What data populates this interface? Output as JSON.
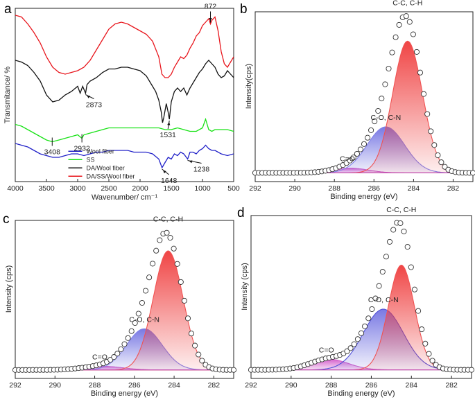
{
  "chart_data": [
    {
      "panel": "a",
      "type": "line",
      "title": "",
      "xlabel": "Wavenumber/ cm⁻¹",
      "ylabel": "Transmitance/ %",
      "xlim": [
        4000,
        500
      ],
      "ylim": [
        0,
        100
      ],
      "xticks": [
        4000,
        3500,
        3000,
        2500,
        2000,
        1500,
        1000,
        500
      ],
      "series": [
        {
          "name": "DA/SS/Wool fiber",
          "color": "#e8141b",
          "x": [
            4000,
            3900,
            3800,
            3700,
            3600,
            3500,
            3400,
            3300,
            3200,
            3100,
            3000,
            2900,
            2800,
            2700,
            2600,
            2500,
            2400,
            2300,
            2200,
            2100,
            2000,
            1900,
            1800,
            1700,
            1650,
            1600,
            1550,
            1500,
            1450,
            1400,
            1350,
            1300,
            1250,
            1200,
            1150,
            1100,
            1050,
            1000,
            950,
            900,
            872,
            850,
            800,
            750,
            700,
            650,
            600,
            550,
            500
          ],
          "y": [
            96,
            95,
            91,
            86,
            80,
            72,
            66,
            63,
            62,
            63,
            64,
            66,
            70,
            76,
            82,
            88,
            91,
            92,
            91,
            89,
            87,
            85,
            81,
            72,
            62,
            60,
            60,
            62,
            66,
            69,
            72,
            71,
            73,
            77,
            80,
            84,
            86,
            90,
            92,
            94,
            91,
            93,
            95,
            87,
            75,
            68,
            66,
            69,
            72
          ]
        },
        {
          "name": "DA/Wool fiber",
          "color": "#111111",
          "x": [
            4000,
            3900,
            3800,
            3700,
            3600,
            3500,
            3400,
            3300,
            3200,
            3100,
            3000,
            2960,
            2920,
            2873,
            2850,
            2800,
            2700,
            2600,
            2500,
            2400,
            2300,
            2200,
            2100,
            2000,
            1900,
            1800,
            1750,
            1700,
            1660,
            1640,
            1620,
            1600,
            1580,
            1550,
            1531,
            1500,
            1450,
            1400,
            1350,
            1300,
            1250,
            1200,
            1150,
            1100,
            1050,
            1000,
            950,
            900,
            850,
            800,
            750,
            700,
            650,
            600,
            550,
            500
          ],
          "y": [
            70,
            69,
            67,
            63,
            58,
            50,
            46,
            47,
            50,
            52,
            55,
            51,
            55,
            51,
            56,
            58,
            60,
            63,
            65,
            65,
            66,
            66,
            65,
            64,
            61,
            55,
            52,
            47,
            40,
            34,
            37,
            41,
            45,
            40,
            36,
            46,
            52,
            54,
            52,
            54,
            50,
            54,
            57,
            60,
            63,
            65,
            68,
            70,
            68,
            66,
            62,
            60,
            61,
            64,
            62,
            60
          ]
        },
        {
          "name": "SS",
          "color": "#17e215",
          "x": [
            4000,
            3900,
            3800,
            3700,
            3600,
            3500,
            3408,
            3300,
            3200,
            3100,
            3000,
            2932,
            2900,
            2800,
            2700,
            2600,
            2500,
            2400,
            2300,
            2200,
            2100,
            2000,
            1900,
            1800,
            1700,
            1600,
            1500,
            1400,
            1300,
            1200,
            1100,
            1000,
            950,
            900,
            850,
            800,
            700,
            600,
            500
          ],
          "y": [
            33,
            32,
            30,
            28,
            26,
            24,
            23,
            24,
            25,
            26,
            27,
            25,
            27,
            28,
            29,
            30,
            31,
            31,
            31,
            31,
            31,
            31,
            31,
            31,
            31,
            30,
            30,
            31,
            30,
            29,
            29,
            31,
            36,
            30,
            29,
            30,
            30,
            30,
            29
          ]
        },
        {
          "name": "Wool fiber",
          "color": "#2020c8",
          "x": [
            4000,
            3900,
            3800,
            3700,
            3600,
            3500,
            3400,
            3300,
            3200,
            3100,
            3000,
            2900,
            2800,
            2700,
            2600,
            2500,
            2400,
            2300,
            2200,
            2100,
            2000,
            1900,
            1800,
            1700,
            1648,
            1600,
            1550,
            1500,
            1450,
            1400,
            1350,
            1300,
            1238,
            1200,
            1150,
            1100,
            1050,
            1000,
            950,
            900,
            850,
            800,
            700,
            600,
            500
          ],
          "y": [
            22,
            21,
            20,
            18,
            16,
            15,
            14,
            14,
            15,
            16,
            16,
            15,
            16,
            17,
            17,
            18,
            18,
            18,
            18,
            17,
            17,
            17,
            16,
            13,
            8,
            11,
            14,
            13,
            16,
            15,
            17,
            16,
            13,
            17,
            17,
            16,
            18,
            19,
            21,
            19,
            18,
            18,
            16,
            15,
            16
          ]
        }
      ],
      "legend": {
        "position": "bottom-center",
        "entries": [
          {
            "label": "Wool fiber",
            "color": "#2020c8"
          },
          {
            "label": "SS",
            "color": "#17e215"
          },
          {
            "label": "DA/Wool fiber",
            "color": "#111111"
          },
          {
            "label": "DA/SS/Wool fiber",
            "color": "#e8141b"
          }
        ]
      },
      "annotations": [
        {
          "text": "872",
          "series": "DA/SS/Wool fiber",
          "x": 872
        },
        {
          "text": "2873",
          "series": "DA/Wool fiber",
          "x": 2873
        },
        {
          "text": "1531",
          "series": "DA/Wool fiber",
          "x": 1531
        },
        {
          "text": "3408",
          "series": "SS",
          "x": 3408
        },
        {
          "text": "2932",
          "series": "SS",
          "x": 2932
        },
        {
          "text": "1648",
          "series": "Wool fiber",
          "x": 1648
        },
        {
          "text": "1238",
          "series": "Wool fiber",
          "x": 1238
        }
      ]
    },
    {
      "panel": "b",
      "type": "line",
      "title": "",
      "xlabel": "Binding energy (eV)",
      "ylabel": "Intensity(cps)",
      "xlim": [
        292,
        281
      ],
      "xticks": [
        292,
        290,
        288,
        286,
        284,
        282
      ],
      "ylim": [
        0,
        1
      ],
      "baseline": 0.02,
      "peaks": [
        {
          "label": "C-C, C-H",
          "center": 284.3,
          "height": 0.83,
          "width": 0.75,
          "color": "#f05252"
        },
        {
          "label": "C-O, C-N",
          "center": 285.4,
          "height": 0.29,
          "width": 0.95,
          "color": "#8080e8"
        },
        {
          "label": "C=O",
          "center": 287.2,
          "height": 0.03,
          "width": 0.9,
          "color": "#d060c8"
        }
      ]
    },
    {
      "panel": "c",
      "type": "line",
      "title": "",
      "xlabel": "Binding energy (eV)",
      "ylabel": "Intensity (cps)",
      "xlim": [
        292,
        281
      ],
      "xticks": [
        292,
        290,
        288,
        286,
        284,
        282
      ],
      "ylim": [
        0,
        1
      ],
      "baseline": 0.02,
      "peaks": [
        {
          "label": "C-C, C-H",
          "center": 284.3,
          "height": 0.81,
          "width": 0.75,
          "color": "#f05252"
        },
        {
          "label": "C-O, C-N",
          "center": 285.5,
          "height": 0.28,
          "width": 0.9,
          "color": "#8080e8"
        },
        {
          "label": "C=O",
          "center": 287.6,
          "height": 0.025,
          "width": 1.0,
          "color": "#d060c8"
        }
      ]
    },
    {
      "panel": "d",
      "type": "line",
      "title": "",
      "xlabel": "Binding energy (eV)",
      "ylabel": "Intensity (cps)",
      "xlim": [
        292,
        281
      ],
      "xticks": [
        292,
        290,
        288,
        286,
        284,
        282
      ],
      "ylim": [
        0,
        1
      ],
      "baseline": 0.02,
      "peaks": [
        {
          "label": "C-C, C-H",
          "center": 284.5,
          "height": 0.69,
          "width": 0.65,
          "color": "#f05252"
        },
        {
          "label": "C-O, C-N",
          "center": 285.4,
          "height": 0.4,
          "width": 1.0,
          "color": "#5050d8"
        },
        {
          "label": "C=O",
          "center": 288.1,
          "height": 0.07,
          "width": 0.95,
          "color": "#d060c8"
        }
      ]
    }
  ]
}
